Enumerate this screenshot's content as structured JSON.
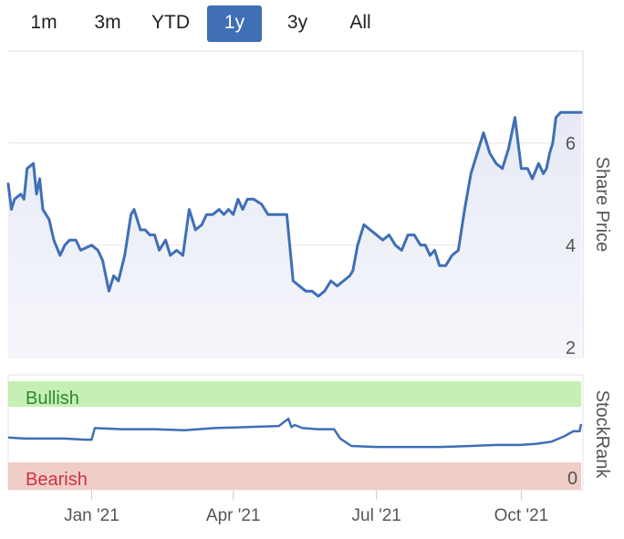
{
  "range_selector": {
    "buttons": [
      "1m",
      "3m",
      "YTD",
      "1y",
      "3y",
      "All"
    ],
    "active": "1y"
  },
  "price_chart": {
    "ylabel": "Share Price",
    "yticks": [
      2,
      4,
      6
    ],
    "ylim": [
      1.8,
      7.8
    ]
  },
  "stockrank_chart": {
    "ylabel": "StockRank",
    "bullish_label": "Bullish",
    "bearish_label": "Bearish",
    "zero_label": "0",
    "bullish_color": "#c6efb5",
    "bearish_color": "#f0cdc7",
    "bullish_text_color": "#2e8b2e",
    "bearish_text_color": "#cc3344",
    "ylim": [
      0,
      100
    ]
  },
  "x_axis": {
    "ticks": [
      {
        "label": "Jan '21",
        "date": "2021-01-01"
      },
      {
        "label": "Apr '21",
        "date": "2021-04-01"
      },
      {
        "label": "Jul '21",
        "date": "2021-07-01"
      },
      {
        "label": "Oct '21",
        "date": "2021-10-01"
      }
    ],
    "start": "2020-11-09",
    "end": "2021-11-08"
  },
  "line_color": "#3f6fb5",
  "chart_data": [
    {
      "type": "area",
      "ylabel": "Share Price",
      "x": [
        "2020-11-09",
        "2020-11-11",
        "2020-11-13",
        "2020-11-17",
        "2020-11-19",
        "2020-11-21",
        "2020-11-25",
        "2020-11-27",
        "2020-11-29",
        "2020-12-01",
        "2020-12-05",
        "2020-12-08",
        "2020-12-12",
        "2020-12-15",
        "2020-12-18",
        "2020-12-22",
        "2020-12-25",
        "2021-01-01",
        "2021-01-05",
        "2021-01-08",
        "2021-01-12",
        "2021-01-15",
        "2021-01-18",
        "2021-01-22",
        "2021-01-26",
        "2021-01-28",
        "2021-02-01",
        "2021-02-04",
        "2021-02-07",
        "2021-02-10",
        "2021-02-13",
        "2021-02-17",
        "2021-02-20",
        "2021-02-24",
        "2021-02-28",
        "2021-03-04",
        "2021-03-08",
        "2021-03-12",
        "2021-03-15",
        "2021-03-19",
        "2021-03-23",
        "2021-03-26",
        "2021-03-29",
        "2021-04-01",
        "2021-04-04",
        "2021-04-07",
        "2021-04-10",
        "2021-04-14",
        "2021-04-19",
        "2021-04-23",
        "2021-04-28",
        "2021-05-02",
        "2021-05-05",
        "2021-05-09",
        "2021-05-13",
        "2021-05-17",
        "2021-05-21",
        "2021-05-25",
        "2021-05-29",
        "2021-06-02",
        "2021-06-06",
        "2021-06-10",
        "2021-06-14",
        "2021-06-16",
        "2021-06-19",
        "2021-06-23",
        "2021-06-27",
        "2021-07-01",
        "2021-07-05",
        "2021-07-09",
        "2021-07-13",
        "2021-07-17",
        "2021-07-21",
        "2021-07-25",
        "2021-07-29",
        "2021-08-01",
        "2021-08-04",
        "2021-08-07",
        "2021-08-10",
        "2021-08-14",
        "2021-08-18",
        "2021-08-22",
        "2021-08-26",
        "2021-08-30",
        "2021-09-03",
        "2021-09-07",
        "2021-09-11",
        "2021-09-15",
        "2021-09-19",
        "2021-09-23",
        "2021-09-27",
        "2021-10-01",
        "2021-10-05",
        "2021-10-08",
        "2021-10-12",
        "2021-10-15",
        "2021-10-17",
        "2021-10-19",
        "2021-10-21",
        "2021-10-23",
        "2021-10-26",
        "2021-10-28",
        "2021-10-30",
        "2021-11-02",
        "2021-11-05",
        "2021-11-07",
        "2021-11-08"
      ],
      "y": [
        5.2,
        4.7,
        4.9,
        5.0,
        4.9,
        5.5,
        5.6,
        5.0,
        5.3,
        4.7,
        4.5,
        4.1,
        3.8,
        4.0,
        4.1,
        4.1,
        3.9,
        4.0,
        3.9,
        3.7,
        3.1,
        3.4,
        3.3,
        3.8,
        4.6,
        4.7,
        4.3,
        4.3,
        4.2,
        4.2,
        3.9,
        4.1,
        3.8,
        3.9,
        3.8,
        4.7,
        4.3,
        4.4,
        4.6,
        4.6,
        4.7,
        4.6,
        4.7,
        4.6,
        4.9,
        4.7,
        4.9,
        4.9,
        4.8,
        4.6,
        4.6,
        4.6,
        4.6,
        3.3,
        3.2,
        3.1,
        3.1,
        3.0,
        3.1,
        3.3,
        3.2,
        3.3,
        3.4,
        3.5,
        4.0,
        4.4,
        4.3,
        4.2,
        4.1,
        4.2,
        4.0,
        3.9,
        4.2,
        4.2,
        4.0,
        4.0,
        3.8,
        3.9,
        3.6,
        3.6,
        3.8,
        3.9,
        4.7,
        5.4,
        5.8,
        6.2,
        5.8,
        5.6,
        5.5,
        5.9,
        6.5,
        5.5,
        5.5,
        5.3,
        5.6,
        5.4,
        5.5,
        5.8,
        6.0,
        6.5,
        6.6,
        6.6,
        6.6,
        6.6,
        6.6,
        6.6,
        6.6
      ]
    },
    {
      "type": "line",
      "ylabel": "StockRank",
      "x": [
        "2020-11-09",
        "2020-11-20",
        "2020-12-01",
        "2020-12-15",
        "2020-12-28",
        "2021-01-01",
        "2021-01-03",
        "2021-01-20",
        "2021-02-10",
        "2021-03-01",
        "2021-03-20",
        "2021-04-10",
        "2021-04-30",
        "2021-05-06",
        "2021-05-08",
        "2021-05-10",
        "2021-05-15",
        "2021-05-25",
        "2021-06-04",
        "2021-06-08",
        "2021-06-15",
        "2021-07-01",
        "2021-07-20",
        "2021-08-10",
        "2021-08-30",
        "2021-09-15",
        "2021-09-30",
        "2021-10-10",
        "2021-10-20",
        "2021-10-28",
        "2021-11-03",
        "2021-11-07",
        "2021-11-08"
      ],
      "y": [
        48,
        47,
        47,
        47,
        46,
        46,
        57,
        56,
        56,
        55,
        57,
        58,
        59,
        66,
        58,
        60,
        57,
        56,
        56,
        47,
        40,
        39,
        39,
        39,
        40,
        41,
        41,
        42,
        44,
        49,
        54,
        54,
        61
      ]
    }
  ]
}
